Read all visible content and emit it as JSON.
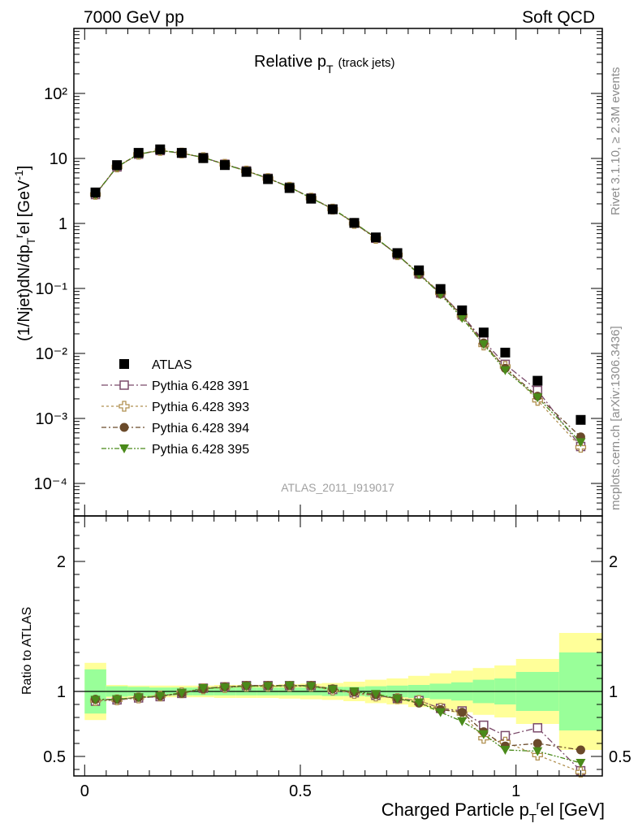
{
  "header": {
    "left": "7000 GeV pp",
    "right": "Soft QCD"
  },
  "side_labels": {
    "rivet": "Rivet 3.1.10, ≥ 2.3M events",
    "mcplots": "mcplots.cern.ch [arXiv:1306.3436]"
  },
  "analysis_id": "ATLAS_2011_I919017",
  "chart_data": [
    {
      "type": "scatter",
      "panel": "main",
      "title": "Relative p_T (track jets)",
      "title_main": "Relative p",
      "title_sub": "T",
      "title_note": "(track jets)",
      "ylabel": "(1/Njet)dN/dp_T^rel [GeV^-1]",
      "ylabel_parts": {
        "a": "(1/Njet)dN/dp",
        "b": "T",
        "c": "r",
        "d": "el [GeV",
        "e": "-1",
        "f": "]"
      },
      "xlim": [
        -0.025,
        1.2
      ],
      "ylim_log": [
        -4.5,
        3.0
      ],
      "yscale": "log",
      "ytick_labels": [
        "10⁻⁴",
        "10⁻³",
        "10⁻²",
        "10⁻¹",
        "1",
        "10",
        "10²"
      ],
      "x": [
        0.025,
        0.075,
        0.125,
        0.175,
        0.225,
        0.275,
        0.325,
        0.375,
        0.425,
        0.475,
        0.525,
        0.575,
        0.625,
        0.675,
        0.725,
        0.775,
        0.825,
        0.875,
        0.925,
        0.975,
        1.05,
        1.15
      ],
      "legend_position": "lower-left",
      "series": [
        {
          "name": "ATLAS",
          "marker": "square-filled",
          "color": "#000000",
          "values": [
            3.0,
            7.9,
            12.2,
            13.8,
            12.2,
            10.1,
            7.9,
            6.2,
            4.8,
            3.5,
            2.4,
            1.65,
            1.02,
            0.61,
            0.35,
            0.19,
            0.098,
            0.046,
            0.021,
            0.0103,
            0.0038,
            0.00095
          ]
        },
        {
          "name": "Pythia 6.428 391",
          "marker": "square-open",
          "color": "#7a4a6a",
          "values": [
            2.78,
            7.4,
            11.6,
            13.2,
            12.0,
            10.35,
            8.15,
            6.45,
            4.95,
            3.62,
            2.47,
            1.67,
            1.01,
            0.59,
            0.33,
            0.168,
            0.085,
            0.039,
            0.0155,
            0.0068,
            0.0027,
            0.00037
          ]
        },
        {
          "name": "Pythia 6.428 393",
          "marker": "cross-open",
          "color": "#b09050",
          "values": [
            2.8,
            7.4,
            11.6,
            13.3,
            12.1,
            10.3,
            8.1,
            6.4,
            4.9,
            3.6,
            2.45,
            1.66,
            1.0,
            0.59,
            0.33,
            0.17,
            0.085,
            0.038,
            0.0135,
            0.0063,
            0.0019,
            0.00036
          ]
        },
        {
          "name": "Pythia 6.428 394",
          "marker": "circle-filled",
          "color": "#6a4a2a",
          "values": [
            2.82,
            7.45,
            11.7,
            13.35,
            12.05,
            10.3,
            8.15,
            6.45,
            4.95,
            3.62,
            2.48,
            1.68,
            1.02,
            0.6,
            0.33,
            0.165,
            0.083,
            0.038,
            0.0145,
            0.0059,
            0.0022,
            0.00052
          ]
        },
        {
          "name": "Pythia 6.428 395",
          "marker": "triangle-down-filled",
          "color": "#4a8a1a",
          "values": [
            2.8,
            7.42,
            11.65,
            13.3,
            12.1,
            10.35,
            8.1,
            6.4,
            4.95,
            3.62,
            2.46,
            1.67,
            1.03,
            0.6,
            0.33,
            0.166,
            0.081,
            0.035,
            0.0138,
            0.0055,
            0.0021,
            0.00043
          ]
        }
      ]
    },
    {
      "type": "scatter",
      "panel": "ratio",
      "ylabel": "Ratio to ATLAS",
      "xlabel": "Charged Particle p_T^rel [GeV]",
      "xlabel_parts": {
        "a": "Charged Particle p",
        "b": "T",
        "c": "r",
        "d": "el [GeV]"
      },
      "xlim": [
        -0.025,
        1.2
      ],
      "ylim": [
        0.35,
        2.35
      ],
      "xtick_labels": [
        "0",
        "0.5",
        "1"
      ],
      "ytick_labels": [
        "0.5",
        "1",
        "2"
      ],
      "reference_line": 1,
      "band_edges": [
        0.0,
        0.05,
        0.1,
        0.15,
        0.2,
        0.25,
        0.3,
        0.35,
        0.4,
        0.45,
        0.5,
        0.55,
        0.6,
        0.65,
        0.7,
        0.75,
        0.8,
        0.85,
        0.9,
        0.95,
        1.0,
        1.1,
        1.2
      ],
      "band_stat_half": [
        0.17,
        0.04,
        0.035,
        0.03,
        0.03,
        0.03,
        0.03,
        0.03,
        0.03,
        0.03,
        0.03,
        0.035,
        0.035,
        0.04,
        0.045,
        0.05,
        0.06,
        0.07,
        0.09,
        0.1,
        0.15,
        0.3
      ],
      "band_total_half": [
        0.22,
        0.05,
        0.045,
        0.045,
        0.045,
        0.045,
        0.05,
        0.05,
        0.05,
        0.055,
        0.06,
        0.065,
        0.075,
        0.09,
        0.1,
        0.12,
        0.14,
        0.16,
        0.18,
        0.2,
        0.25,
        0.45
      ],
      "x": [
        0.025,
        0.075,
        0.125,
        0.175,
        0.225,
        0.275,
        0.325,
        0.375,
        0.425,
        0.475,
        0.525,
        0.575,
        0.625,
        0.675,
        0.725,
        0.775,
        0.825,
        0.875,
        0.925,
        0.975,
        1.05,
        1.15
      ],
      "series": [
        {
          "name": "Pythia 6.428 391",
          "color": "#7a4a6a",
          "values": [
            0.925,
            0.935,
            0.95,
            0.96,
            0.985,
            1.025,
            1.035,
            1.045,
            1.045,
            1.045,
            1.045,
            1.015,
            0.99,
            0.97,
            0.945,
            0.93,
            0.87,
            0.85,
            0.74,
            0.66,
            0.72,
            0.39
          ]
        },
        {
          "name": "Pythia 6.428 393",
          "color": "#b09050",
          "values": [
            0.93,
            0.935,
            0.95,
            0.965,
            0.99,
            1.02,
            1.03,
            1.04,
            1.04,
            1.04,
            1.04,
            1.01,
            0.985,
            0.965,
            0.945,
            0.93,
            0.87,
            0.83,
            0.64,
            0.61,
            0.51,
            0.38
          ]
        },
        {
          "name": "Pythia 6.428 394",
          "color": "#6a4a2a",
          "values": [
            0.94,
            0.94,
            0.955,
            0.965,
            0.985,
            1.02,
            1.035,
            1.045,
            1.045,
            1.045,
            1.045,
            1.02,
            0.995,
            0.975,
            0.945,
            0.91,
            0.86,
            0.84,
            0.69,
            0.58,
            0.6,
            0.55
          ]
        },
        {
          "name": "Pythia 6.428 395",
          "color": "#4a8a1a",
          "values": [
            0.935,
            0.94,
            0.955,
            0.965,
            0.99,
            1.025,
            1.03,
            1.04,
            1.04,
            1.045,
            1.04,
            1.015,
            1.0,
            0.98,
            0.945,
            0.915,
            0.84,
            0.77,
            0.67,
            0.55,
            0.54,
            0.45
          ]
        }
      ]
    }
  ]
}
